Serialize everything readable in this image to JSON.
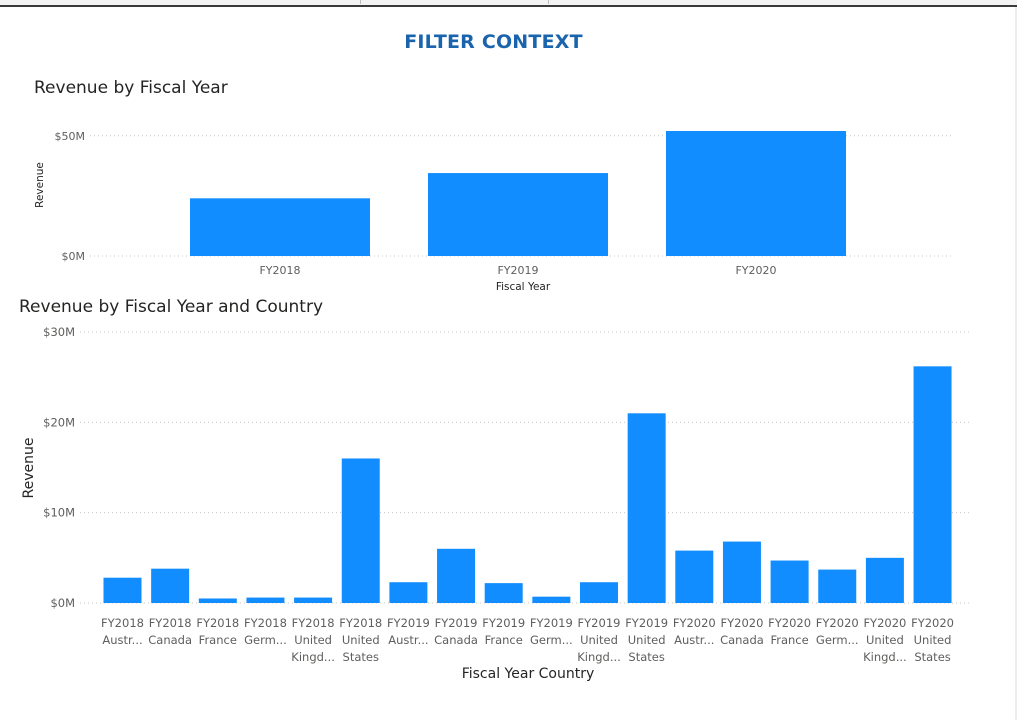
{
  "page": {
    "title": "FILTER CONTEXT"
  },
  "colors": {
    "bar": "#118dff",
    "title": "#1a64ad",
    "gridline": "#c8c6c4",
    "axis_text": "#605e5c"
  },
  "chart_data": [
    {
      "type": "bar",
      "title": "Revenue by Fiscal Year",
      "xlabel": "Fiscal Year",
      "ylabel": "Revenue",
      "categories": [
        "FY2018",
        "FY2019",
        "FY2020"
      ],
      "values": [
        24,
        34.5,
        52
      ],
      "value_unit": "$M",
      "ylim": [
        0,
        52
      ],
      "yticks": [
        0,
        50
      ],
      "ytick_labels": [
        "$0M",
        "$50M"
      ],
      "grid": true
    },
    {
      "type": "bar",
      "title": "Revenue by Fiscal Year and Country",
      "xlabel": "Fiscal Year Country",
      "ylabel": "Revenue",
      "categories": [
        [
          "FY2018",
          "Austr..."
        ],
        [
          "FY2018",
          "Canada"
        ],
        [
          "FY2018",
          "France"
        ],
        [
          "FY2018",
          "Germ..."
        ],
        [
          "FY2018",
          "United",
          "Kingd..."
        ],
        [
          "FY2018",
          "United",
          "States"
        ],
        [
          "FY2019",
          "Austr..."
        ],
        [
          "FY2019",
          "Canada"
        ],
        [
          "FY2019",
          "France"
        ],
        [
          "FY2019",
          "Germ..."
        ],
        [
          "FY2019",
          "United",
          "Kingd..."
        ],
        [
          "FY2019",
          "United",
          "States"
        ],
        [
          "FY2020",
          "Austr..."
        ],
        [
          "FY2020",
          "Canada"
        ],
        [
          "FY2020",
          "France"
        ],
        [
          "FY2020",
          "Germ..."
        ],
        [
          "FY2020",
          "United",
          "Kingd..."
        ],
        [
          "FY2020",
          "United",
          "States"
        ]
      ],
      "values": [
        2.8,
        3.8,
        0.5,
        0.6,
        0.6,
        16,
        2.3,
        6,
        2.2,
        0.7,
        2.3,
        21,
        5.8,
        6.8,
        4.7,
        3.7,
        5,
        26.2
      ],
      "value_unit": "$M",
      "ylim": [
        0,
        30
      ],
      "yticks": [
        0,
        10,
        20,
        30
      ],
      "ytick_labels": [
        "$0M",
        "$10M",
        "$20M",
        "$30M"
      ],
      "grid": true
    }
  ]
}
